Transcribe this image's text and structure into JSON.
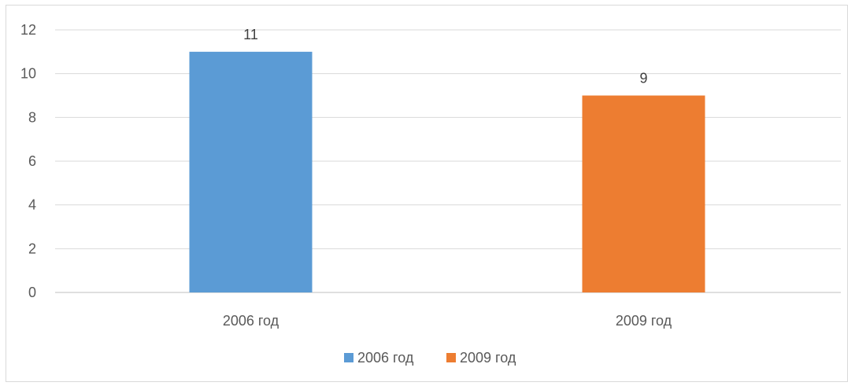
{
  "chart_data": {
    "type": "bar",
    "categories": [
      "2006 год",
      "2009 год"
    ],
    "values": [
      11,
      9
    ],
    "data_labels": [
      "11",
      "9"
    ],
    "colors": [
      "#5b9bd5",
      "#ed7d31"
    ],
    "ylim": [
      0,
      12
    ],
    "yticks": [
      0,
      2,
      4,
      6,
      8,
      10,
      12
    ],
    "grid": true,
    "legend": {
      "position": "bottom",
      "entries": [
        "2006 год",
        "2009 год"
      ]
    }
  }
}
